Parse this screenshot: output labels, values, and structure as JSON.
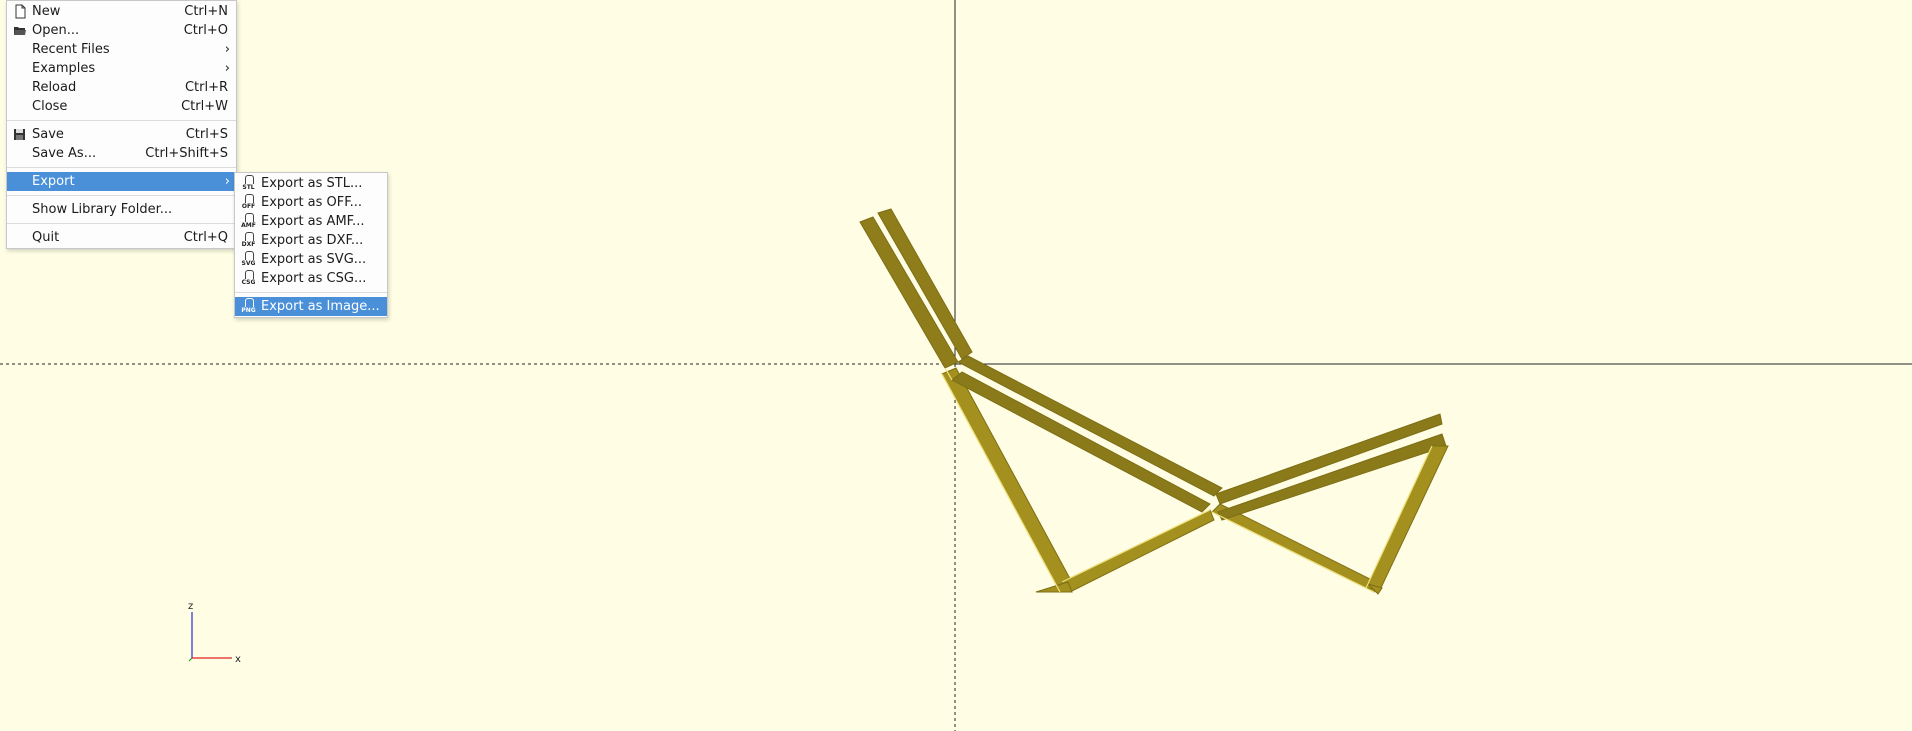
{
  "file_menu": {
    "items": [
      {
        "label": "New",
        "shortcut": "Ctrl+N",
        "icon": "new-file-icon"
      },
      {
        "label": "Open...",
        "shortcut": "Ctrl+O",
        "icon": "open-folder-icon"
      },
      {
        "label": "Recent Files",
        "shortcut": "",
        "submenu": true
      },
      {
        "label": "Examples",
        "shortcut": "",
        "submenu": true
      },
      {
        "label": "Reload",
        "shortcut": "Ctrl+R"
      },
      {
        "label": "Close",
        "shortcut": "Ctrl+W"
      },
      {
        "label": "Save",
        "shortcut": "Ctrl+S",
        "icon": "save-icon"
      },
      {
        "label": "Save As...",
        "shortcut": "Ctrl+Shift+S"
      },
      {
        "label": "Export",
        "shortcut": "",
        "submenu": true,
        "active": true
      },
      {
        "label": "Show Library Folder...",
        "shortcut": ""
      },
      {
        "label": "Quit",
        "shortcut": "Ctrl+Q"
      }
    ]
  },
  "export_menu": {
    "items": [
      {
        "label": "Export as STL...",
        "format": "STL"
      },
      {
        "label": "Export as OFF...",
        "format": "OFF"
      },
      {
        "label": "Export as AMF...",
        "format": "AMF"
      },
      {
        "label": "Export as DXF...",
        "format": "DXF"
      },
      {
        "label": "Export as SVG...",
        "format": "SVG"
      },
      {
        "label": "Export as CSG...",
        "format": "CSG"
      },
      {
        "label": "Export as Image...",
        "format": "PNG",
        "active": true
      }
    ]
  },
  "axis_widget": {
    "z_label": "z",
    "x_label": "x"
  },
  "colors": {
    "background": "#fffee5",
    "model_fill": "#a3901e",
    "model_dark": "#8a7a1a",
    "model_highlight": "#f3e57a",
    "highlight": "#4a90d9",
    "axis_x": "#e02020",
    "axis_z": "#2030d0"
  }
}
